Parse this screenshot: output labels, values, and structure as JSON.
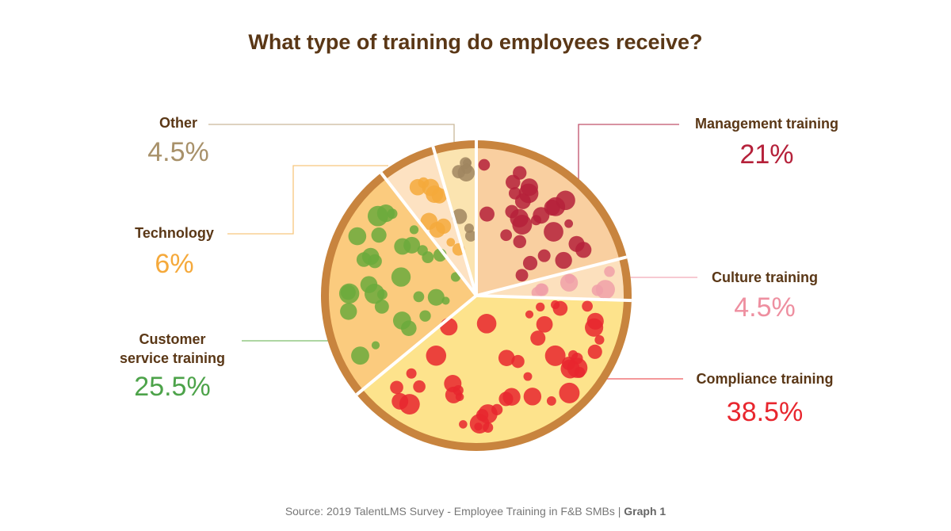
{
  "chart_data": {
    "type": "pie",
    "title": "What type of training do employees receive?",
    "start": "top",
    "direction": "clockwise",
    "slices": [
      {
        "label": "Management training",
        "value": 21,
        "display": "21%",
        "color": "#B5213A",
        "fill": "#F9CFA0",
        "topping": "#B5213A"
      },
      {
        "label": "Culture training",
        "value": 4.5,
        "display": "4.5%",
        "color": "#EE8FA0",
        "fill": "#FCE0BD",
        "topping": "#F0A0A8"
      },
      {
        "label": "Compliance training",
        "value": 38.5,
        "display": "38.5%",
        "color": "#E8262E",
        "fill": "#FDE38C",
        "topping": "#E8262E"
      },
      {
        "label": "Customer service training",
        "value": 25.5,
        "display": "25.5%",
        "color": "#4DA34A",
        "fill": "#FBCB7E",
        "topping": "#6BAA3C"
      },
      {
        "label": "Technology",
        "value": 6,
        "display": "6%",
        "color": "#F5A93B",
        "fill": "#FDE2C2",
        "topping": "#F5A93B"
      },
      {
        "label": "Other",
        "value": 4.5,
        "display": "4.5%",
        "color": "#A8916A",
        "fill": "#FBE4B0",
        "topping": "#A08660"
      }
    ],
    "crust_color": "#C8843E"
  },
  "labels": {
    "management": "Management training",
    "culture": "Culture training",
    "compliance": "Compliance training",
    "customer_line1": "Customer",
    "customer_line2": "service training",
    "technology": "Technology",
    "other": "Other"
  },
  "source": {
    "text": "Source: 2019 TalentLMS Survey - Employee Training in F&B SMBs | ",
    "graph": "Graph 1"
  }
}
